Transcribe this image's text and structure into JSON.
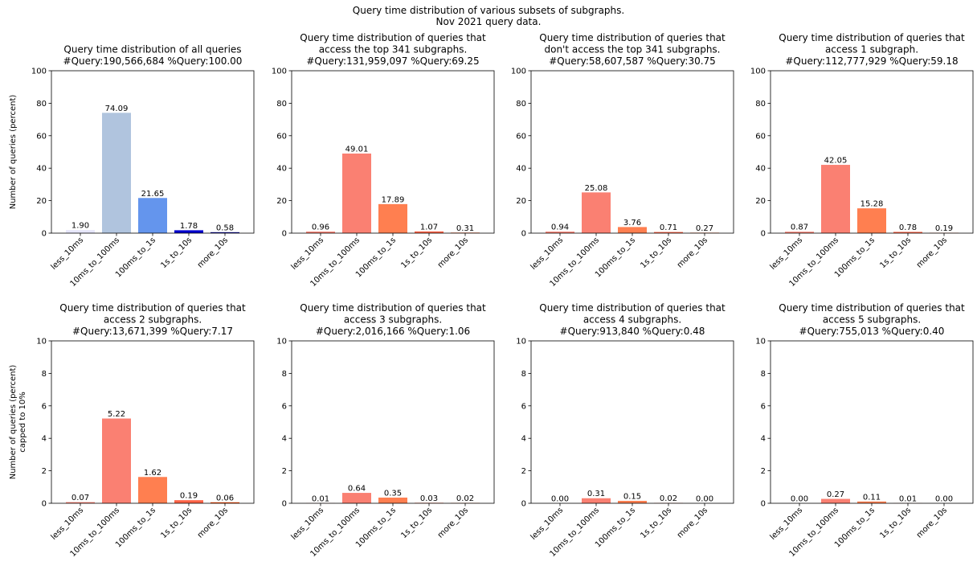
{
  "title_lines": [
    "Query time distribution of various subsets of subgraphs.",
    "Nov 2021 query data."
  ],
  "chart_data": [
    {
      "type": "bar",
      "title": [
        "Query time distribution of all queries",
        "#Query:190,566,684 %Query:100.00"
      ],
      "ylabel": [
        "Number of queries (percent)"
      ],
      "ylim": [
        0,
        100
      ],
      "yticks": [
        0,
        20,
        40,
        60,
        80,
        100
      ],
      "categories": [
        "less_10ms",
        "10ms_to_100ms",
        "100ms_to_1s",
        "1s_to_10s",
        "more_10s"
      ],
      "values": [
        1.9,
        74.09,
        21.65,
        1.78,
        0.58
      ],
      "value_labels": [
        "1.90",
        "74.09",
        "21.65",
        "1.78",
        "0.58"
      ],
      "colors": [
        "#e6e6fa",
        "#b0c4de",
        "#6495ed",
        "#0000cd",
        "#00008b"
      ]
    },
    {
      "type": "bar",
      "title": [
        "Query time distribution of queries that",
        "access the top 341 subgraphs.",
        "#Query:131,959,097 %Query:69.25"
      ],
      "ylabel": [],
      "ylim": [
        0,
        100
      ],
      "yticks": [
        0,
        20,
        40,
        60,
        80,
        100
      ],
      "categories": [
        "less_10ms",
        "10ms_to_100ms",
        "100ms_to_1s",
        "1s_to_10s",
        "more_10s"
      ],
      "values": [
        0.96,
        49.01,
        17.89,
        1.07,
        0.31
      ],
      "value_labels": [
        "0.96",
        "49.01",
        "17.89",
        "1.07",
        "0.31"
      ],
      "colors": [
        "#fa8072",
        "#fa8072",
        "#ff7f50",
        "#ff6347",
        "#ff4500"
      ]
    },
    {
      "type": "bar",
      "title": [
        "Query time distribution of queries that",
        "don't access the top 341 subgraphs.",
        "#Query:58,607,587 %Query:30.75"
      ],
      "ylabel": [],
      "ylim": [
        0,
        100
      ],
      "yticks": [
        0,
        20,
        40,
        60,
        80,
        100
      ],
      "categories": [
        "less_10ms",
        "10ms_to_100ms",
        "100ms_to_1s",
        "1s_to_10s",
        "more_10s"
      ],
      "values": [
        0.94,
        25.08,
        3.76,
        0.71,
        0.27
      ],
      "value_labels": [
        "0.94",
        "25.08",
        "3.76",
        "0.71",
        "0.27"
      ],
      "colors": [
        "#fa8072",
        "#fa8072",
        "#ff7f50",
        "#ff6347",
        "#ff4500"
      ]
    },
    {
      "type": "bar",
      "title": [
        "Query time distribution of queries that",
        "access 1 subgraph.",
        "#Query:112,777,929 %Query:59.18"
      ],
      "ylabel": [],
      "ylim": [
        0,
        100
      ],
      "yticks": [
        0,
        20,
        40,
        60,
        80,
        100
      ],
      "categories": [
        "less_10ms",
        "10ms_to_100ms",
        "100ms_to_1s",
        "1s_to_10s",
        "more_10s"
      ],
      "values": [
        0.87,
        42.05,
        15.28,
        0.78,
        0.19
      ],
      "value_labels": [
        "0.87",
        "42.05",
        "15.28",
        "0.78",
        "0.19"
      ],
      "colors": [
        "#fa8072",
        "#fa8072",
        "#ff7f50",
        "#ff6347",
        "#ff4500"
      ]
    },
    {
      "type": "bar",
      "title": [
        "Query time distribution of queries that",
        "access 2 subgraphs.",
        "#Query:13,671,399 %Query:7.17"
      ],
      "ylabel": [
        "Number of queries (percent)",
        "capped to 10%"
      ],
      "ylim": [
        0,
        10
      ],
      "yticks": [
        0,
        2,
        4,
        6,
        8,
        10
      ],
      "categories": [
        "less_10ms",
        "10ms_to_100ms",
        "100ms_to_1s",
        "1s_to_10s",
        "more_10s"
      ],
      "values": [
        0.07,
        5.22,
        1.62,
        0.19,
        0.06
      ],
      "value_labels": [
        "0.07",
        "5.22",
        "1.62",
        "0.19",
        "0.06"
      ],
      "colors": [
        "#fa8072",
        "#fa8072",
        "#ff7f50",
        "#ff6347",
        "#ff4500"
      ]
    },
    {
      "type": "bar",
      "title": [
        "Query time distribution of queries that",
        "access 3 subgraphs.",
        "#Query:2,016,166 %Query:1.06"
      ],
      "ylabel": [],
      "ylim": [
        0,
        10
      ],
      "yticks": [
        0,
        2,
        4,
        6,
        8,
        10
      ],
      "categories": [
        "less_10ms",
        "10ms_to_100ms",
        "100ms_to_1s",
        "1s_to_10s",
        "more_10s"
      ],
      "values": [
        0.01,
        0.64,
        0.35,
        0.03,
        0.02
      ],
      "value_labels": [
        "0.01",
        "0.64",
        "0.35",
        "0.03",
        "0.02"
      ],
      "colors": [
        "#fa8072",
        "#fa8072",
        "#ff7f50",
        "#ff6347",
        "#ff4500"
      ]
    },
    {
      "type": "bar",
      "title": [
        "Query time distribution of queries that",
        "access 4 subgraphs.",
        "#Query:913,840 %Query:0.48"
      ],
      "ylabel": [],
      "ylim": [
        0,
        10
      ],
      "yticks": [
        0,
        2,
        4,
        6,
        8,
        10
      ],
      "categories": [
        "less_10ms",
        "10ms_to_100ms",
        "100ms_to_1s",
        "1s_to_10s",
        "more_10s"
      ],
      "values": [
        0.0,
        0.31,
        0.15,
        0.02,
        0.0
      ],
      "value_labels": [
        "0.00",
        "0.31",
        "0.15",
        "0.02",
        "0.00"
      ],
      "colors": [
        "#fa8072",
        "#fa8072",
        "#ff7f50",
        "#ff6347",
        "#ff4500"
      ]
    },
    {
      "type": "bar",
      "title": [
        "Query time distribution of queries that",
        "access 5 subgraphs.",
        "#Query:755,013 %Query:0.40"
      ],
      "ylabel": [],
      "ylim": [
        0,
        10
      ],
      "yticks": [
        0,
        2,
        4,
        6,
        8,
        10
      ],
      "categories": [
        "less_10ms",
        "10ms_to_100ms",
        "100ms_to_1s",
        "1s_to_10s",
        "more_10s"
      ],
      "values": [
        0.0,
        0.27,
        0.11,
        0.01,
        0.0
      ],
      "value_labels": [
        "0.00",
        "0.27",
        "0.11",
        "0.01",
        "0.00"
      ],
      "colors": [
        "#fa8072",
        "#fa8072",
        "#ff7f50",
        "#ff6347",
        "#ff4500"
      ]
    }
  ]
}
